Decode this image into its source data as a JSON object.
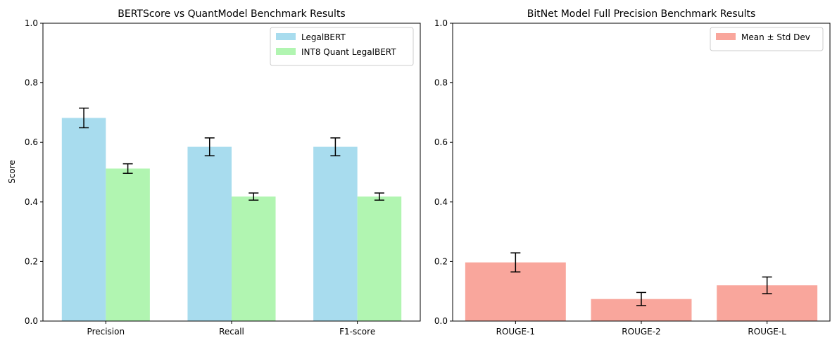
{
  "chart_data": [
    {
      "type": "bar",
      "title": "BERTScore vs QuantModel Benchmark Results",
      "xlabel": "",
      "ylabel": "Score",
      "ylim": [
        0,
        1
      ],
      "yticks": [
        "0.0",
        "0.2",
        "0.4",
        "0.6",
        "0.8",
        "1.0"
      ],
      "categories": [
        "Precision",
        "Recall",
        "F1-score"
      ],
      "series": [
        {
          "name": "LegalBERT",
          "color": "#a8dcee",
          "values": [
            0.682,
            0.585,
            0.585
          ],
          "errors": [
            0.033,
            0.03,
            0.03
          ]
        },
        {
          "name": "INT8 Quant LegalBERT",
          "color": "#b1f5b1",
          "values": [
            0.512,
            0.418,
            0.418
          ],
          "errors": [
            0.016,
            0.012,
            0.012
          ]
        }
      ],
      "grid": false,
      "legend": "top-right"
    },
    {
      "type": "bar",
      "title": "BitNet Model Full Precision Benchmark Results",
      "xlabel": "",
      "ylabel": "",
      "ylim": [
        0,
        1
      ],
      "yticks": [
        "0.0",
        "0.2",
        "0.4",
        "0.6",
        "0.8",
        "1.0"
      ],
      "categories": [
        "ROUGE-1",
        "ROUGE-2",
        "ROUGE-L"
      ],
      "series": [
        {
          "name": "Mean ± Std Dev",
          "color": "#f9a69c",
          "values": [
            0.197,
            0.074,
            0.12
          ],
          "errors": [
            0.032,
            0.022,
            0.028
          ]
        }
      ],
      "grid": false,
      "legend": "top-right"
    }
  ]
}
